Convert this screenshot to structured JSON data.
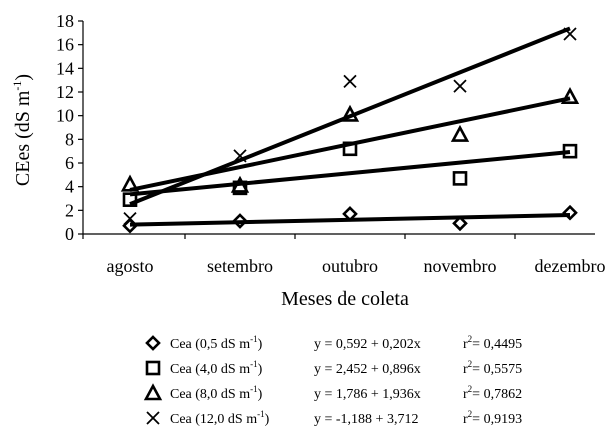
{
  "chart_data": {
    "type": "scatter",
    "ylabel": "CEes (dS m",
    "ylabel_sup": "-1",
    "ylabel_close": ")",
    "xlabel": "Meses de coleta",
    "categories": [
      "agosto",
      "setembro",
      "outubro",
      "novembro",
      "dezembro"
    ],
    "ylim": [
      0,
      18
    ],
    "yticks": [
      0,
      2,
      4,
      6,
      8,
      10,
      12,
      14,
      16,
      18
    ],
    "grid": false,
    "legend_position": "bottom",
    "series": [
      {
        "marker": "diamond",
        "values": [
          0.7,
          1.1,
          1.7,
          0.9,
          1.8
        ],
        "fit": {
          "intercept": 0.592,
          "slope": 0.202
        },
        "label_main": "Cea (0,5 dS m",
        "label_sup": "-1",
        "label_close": ")",
        "equation": "y = 0,592 + 0,202x",
        "r2_label": "r",
        "r2_sup": "2",
        "r2_value": "= 0,4495"
      },
      {
        "marker": "square",
        "values": [
          2.9,
          3.9,
          7.2,
          4.7,
          7.0
        ],
        "fit": {
          "intercept": 2.452,
          "slope": 0.896
        },
        "label_main": "Cea (4,0 dS m",
        "label_sup": "-1",
        "label_close": ")",
        "equation": "y = 2,452 + 0,896x",
        "r2_label": "r",
        "r2_sup": "2",
        "r2_value": "= 0,5575"
      },
      {
        "marker": "triangle",
        "values": [
          4.2,
          4.1,
          10.1,
          8.4,
          11.6
        ],
        "fit": {
          "intercept": 1.786,
          "slope": 1.936
        },
        "label_main": "Cea (8,0 dS m",
        "label_sup": "-1",
        "label_close": ")",
        "equation": "y = 1,786 + 1,936x",
        "r2_label": "r",
        "r2_sup": "2",
        "r2_value": "= 0,7862"
      },
      {
        "marker": "x",
        "values": [
          1.3,
          6.6,
          12.9,
          12.5,
          16.9
        ],
        "fit": {
          "intercept": -1.188,
          "slope": 3.712
        },
        "label_main": "Cea (12,0 dS m",
        "label_sup": "-1",
        "label_close": ")",
        "equation": "y = -1,188 + 3,712",
        "r2_label": "r",
        "r2_sup": "2",
        "r2_value": "= 0,9193"
      }
    ]
  }
}
